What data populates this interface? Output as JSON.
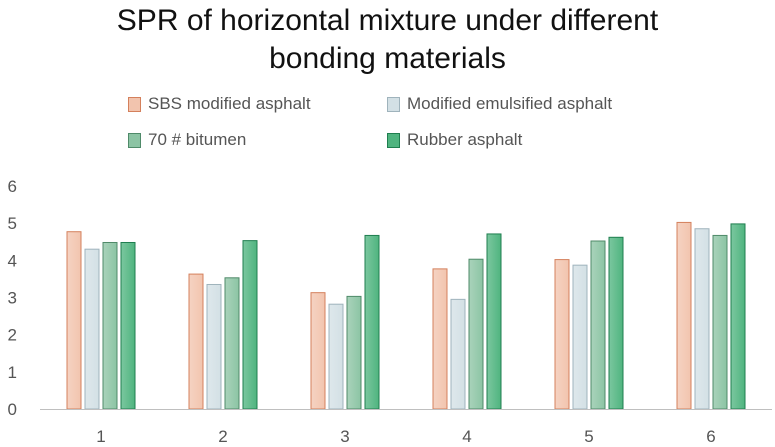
{
  "chart_data": {
    "type": "bar",
    "title": "SPR of horizontal mixture under different bonding materials",
    "title_lines": [
      "SPR of horizontal mixture under different",
      "bonding materials"
    ],
    "xlabel": "",
    "ylabel": "",
    "categories": [
      "1",
      "2",
      "3",
      "4",
      "5",
      "6"
    ],
    "ylim": [
      0,
      6
    ],
    "yticks": [
      "0",
      "1",
      "2",
      "3",
      "4",
      "5",
      "6"
    ],
    "grid": false,
    "legend_position": "top",
    "series": [
      {
        "name": "SBS modified asphalt",
        "color": "#f2c4ae",
        "edge": "#d4805c",
        "values": [
          4.77,
          3.63,
          3.13,
          3.77,
          4.02,
          5.02
        ]
      },
      {
        "name": "Modified emulsified asphalt",
        "color": "#d3e0e5",
        "edge": "#9fb3bc",
        "values": [
          4.3,
          3.35,
          2.82,
          2.95,
          3.87,
          4.85
        ]
      },
      {
        "name": "70 # bitumen",
        "color": "#8cc4a4",
        "edge": "#4f8a69",
        "values": [
          4.48,
          3.53,
          3.03,
          4.03,
          4.52,
          4.67
        ]
      },
      {
        "name": "Rubber asphalt",
        "color": "#4fb47f",
        "edge": "#1f7e4f",
        "values": [
          4.48,
          4.53,
          4.67,
          4.71,
          4.62,
          4.98
        ]
      }
    ]
  }
}
